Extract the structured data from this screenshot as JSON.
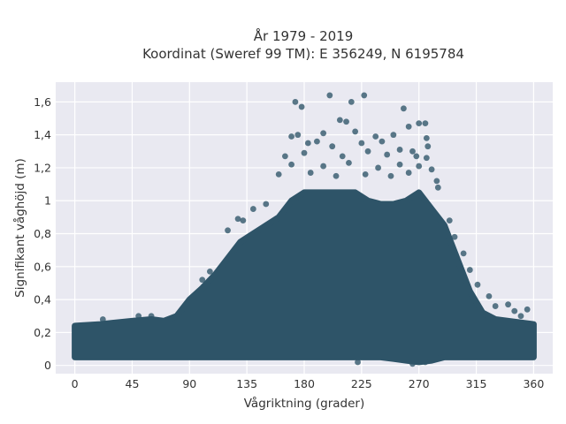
{
  "chart_data": {
    "type": "scatter",
    "title_lines": [
      "År 1979 - 2019",
      "Koordinat (Sweref 99 TM): E 356249, N 6195784"
    ],
    "xlabel": "Vågriktning (grader)",
    "ylabel": "Signifikant våghöjd (m)",
    "xlim": [
      -15,
      375
    ],
    "ylim": [
      -0.05,
      1.72
    ],
    "x_ticks": [
      0,
      45,
      90,
      135,
      180,
      225,
      270,
      315,
      360
    ],
    "x_tick_labels": [
      "0",
      "45",
      "90",
      "135",
      "180",
      "225",
      "270",
      "315",
      "360"
    ],
    "y_ticks": [
      0,
      0.2,
      0.4,
      0.6,
      0.8,
      1.0,
      1.2,
      1.4,
      1.6
    ],
    "y_tick_labels": [
      "0",
      "0,2",
      "0,4",
      "0,6",
      "0,8",
      "1",
      "1,2",
      "1,4",
      "1,6"
    ],
    "grid": true,
    "marker_color": "#2e5468",
    "background_color": "#e9e9f1",
    "envelope": {
      "x": [
        0,
        20,
        45,
        60,
        70,
        80,
        90,
        100,
        110,
        120,
        130,
        140,
        150,
        160,
        170,
        180,
        190,
        200,
        210,
        220,
        230,
        240,
        250,
        260,
        270,
        280,
        290,
        300,
        310,
        320,
        330,
        340,
        350,
        360
      ],
      "y_top": [
        0.24,
        0.25,
        0.27,
        0.28,
        0.27,
        0.3,
        0.4,
        0.47,
        0.55,
        0.65,
        0.75,
        0.8,
        0.85,
        0.9,
        1.0,
        1.05,
        1.05,
        1.05,
        1.05,
        1.05,
        1.0,
        0.98,
        0.98,
        1.0,
        1.05,
        0.95,
        0.85,
        0.65,
        0.45,
        0.32,
        0.28,
        0.27,
        0.26,
        0.25
      ],
      "y_bottom": [
        0.05,
        0.05,
        0.05,
        0.05,
        0.05,
        0.05,
        0.05,
        0.05,
        0.05,
        0.05,
        0.05,
        0.05,
        0.05,
        0.05,
        0.05,
        0.05,
        0.05,
        0.05,
        0.05,
        0.05,
        0.05,
        0.05,
        0.04,
        0.03,
        0.02,
        0.03,
        0.05,
        0.05,
        0.05,
        0.05,
        0.05,
        0.05,
        0.05,
        0.05
      ]
    },
    "outliers": [
      {
        "x": 173,
        "y": 1.6
      },
      {
        "x": 178,
        "y": 1.57
      },
      {
        "x": 200,
        "y": 1.64
      },
      {
        "x": 217,
        "y": 1.6
      },
      {
        "x": 227,
        "y": 1.64
      },
      {
        "x": 258,
        "y": 1.56
      },
      {
        "x": 208,
        "y": 1.49
      },
      {
        "x": 213,
        "y": 1.48
      },
      {
        "x": 262,
        "y": 1.45
      },
      {
        "x": 270,
        "y": 1.47
      },
      {
        "x": 275,
        "y": 1.47
      },
      {
        "x": 170,
        "y": 1.39
      },
      {
        "x": 175,
        "y": 1.4
      },
      {
        "x": 195,
        "y": 1.41
      },
      {
        "x": 220,
        "y": 1.42
      },
      {
        "x": 236,
        "y": 1.39
      },
      {
        "x": 250,
        "y": 1.4
      },
      {
        "x": 276,
        "y": 1.38
      },
      {
        "x": 183,
        "y": 1.35
      },
      {
        "x": 190,
        "y": 1.36
      },
      {
        "x": 202,
        "y": 1.33
      },
      {
        "x": 225,
        "y": 1.35
      },
      {
        "x": 241,
        "y": 1.36
      },
      {
        "x": 255,
        "y": 1.31
      },
      {
        "x": 265,
        "y": 1.3
      },
      {
        "x": 277,
        "y": 1.33
      },
      {
        "x": 165,
        "y": 1.27
      },
      {
        "x": 180,
        "y": 1.29
      },
      {
        "x": 210,
        "y": 1.27
      },
      {
        "x": 230,
        "y": 1.3
      },
      {
        "x": 245,
        "y": 1.28
      },
      {
        "x": 268,
        "y": 1.27
      },
      {
        "x": 276,
        "y": 1.26
      },
      {
        "x": 170,
        "y": 1.22
      },
      {
        "x": 195,
        "y": 1.21
      },
      {
        "x": 215,
        "y": 1.23
      },
      {
        "x": 238,
        "y": 1.2
      },
      {
        "x": 255,
        "y": 1.22
      },
      {
        "x": 270,
        "y": 1.21
      },
      {
        "x": 280,
        "y": 1.19
      },
      {
        "x": 160,
        "y": 1.16
      },
      {
        "x": 185,
        "y": 1.17
      },
      {
        "x": 205,
        "y": 1.15
      },
      {
        "x": 228,
        "y": 1.16
      },
      {
        "x": 248,
        "y": 1.15
      },
      {
        "x": 262,
        "y": 1.17
      },
      {
        "x": 284,
        "y": 1.12
      },
      {
        "x": 150,
        "y": 0.98
      },
      {
        "x": 140,
        "y": 0.95
      },
      {
        "x": 128,
        "y": 0.89
      },
      {
        "x": 132,
        "y": 0.88
      },
      {
        "x": 120,
        "y": 0.82
      },
      {
        "x": 294,
        "y": 0.88
      },
      {
        "x": 298,
        "y": 0.78
      },
      {
        "x": 305,
        "y": 0.68
      },
      {
        "x": 310,
        "y": 0.58
      },
      {
        "x": 316,
        "y": 0.49
      },
      {
        "x": 325,
        "y": 0.42
      },
      {
        "x": 330,
        "y": 0.36
      },
      {
        "x": 340,
        "y": 0.37
      },
      {
        "x": 345,
        "y": 0.33
      },
      {
        "x": 355,
        "y": 0.34
      },
      {
        "x": 350,
        "y": 0.3
      },
      {
        "x": 22,
        "y": 0.28
      },
      {
        "x": 50,
        "y": 0.3
      },
      {
        "x": 60,
        "y": 0.3
      },
      {
        "x": 100,
        "y": 0.52
      },
      {
        "x": 106,
        "y": 0.57
      },
      {
        "x": 285,
        "y": 1.08
      },
      {
        "x": 275,
        "y": 0.02
      },
      {
        "x": 265,
        "y": 0.01
      },
      {
        "x": 222,
        "y": 0.02
      }
    ]
  }
}
